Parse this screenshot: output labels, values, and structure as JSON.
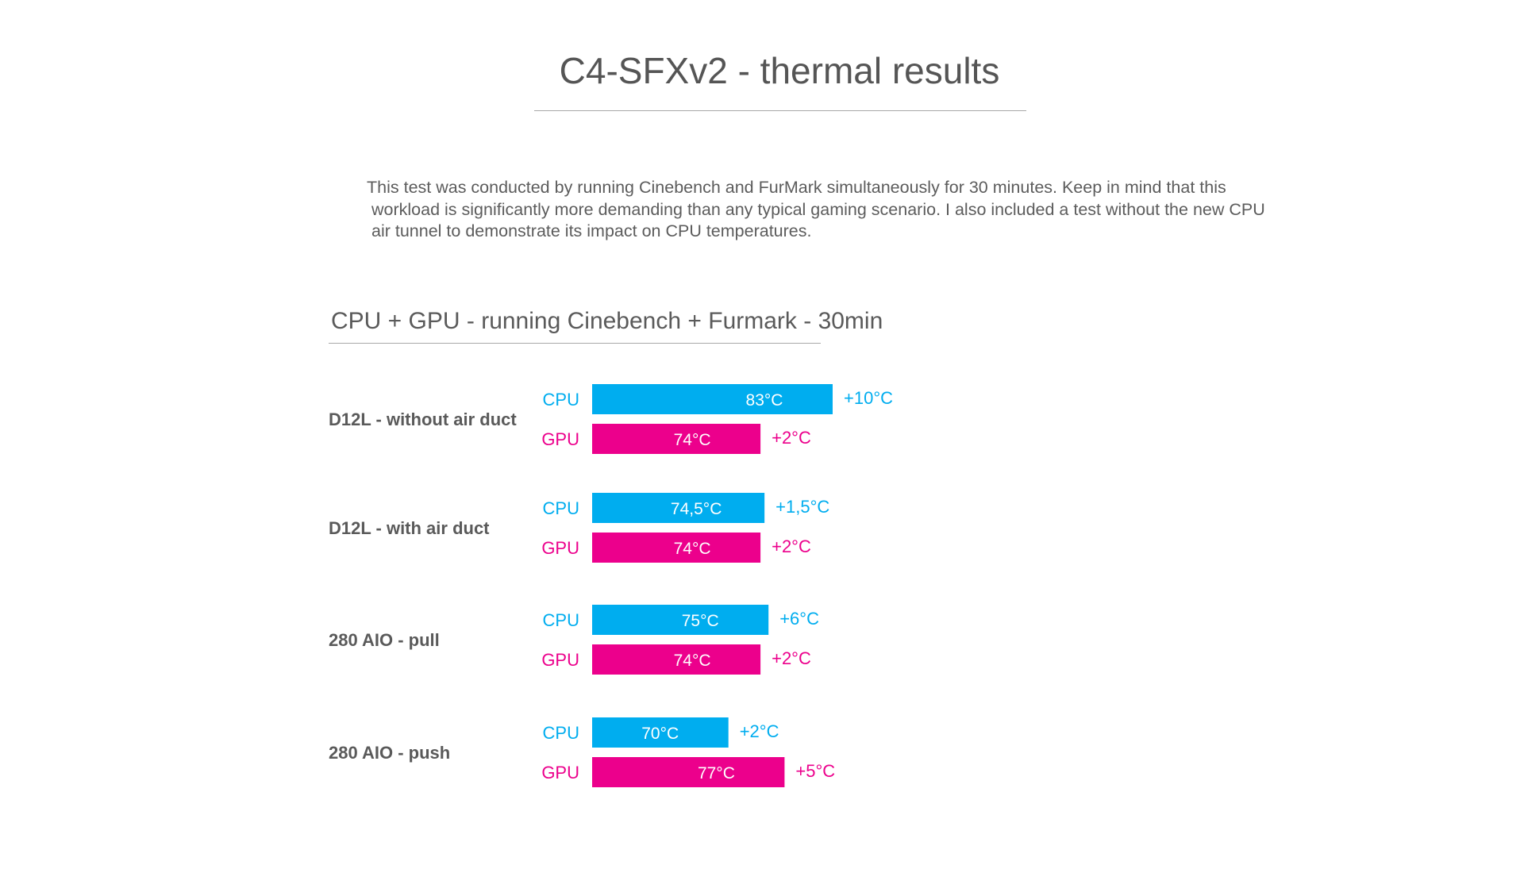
{
  "title": "C4-SFXv2 - thermal results",
  "description": [
    "This test was conducted by running Cinebench and FurMark simultaneously for 30 minutes. Keep in mind that this",
    "workload is significantly more demanding than any typical gaming scenario. I also included a test without the new CPU",
    "air tunnel to demonstrate its impact on CPU temperatures."
  ],
  "chart_data": {
    "type": "bar",
    "orientation": "horizontal",
    "title": "CPU + GPU - running Cinebench + Furmark - 30min",
    "unit": "°C",
    "colors": {
      "CPU": "#00adef",
      "GPU": "#ec008c"
    },
    "categories": [
      "D12L - without air duct",
      "D12L - with air duct",
      "280 AIO - pull",
      "280 AIO - push"
    ],
    "series": [
      {
        "name": "CPU",
        "values": [
          83,
          74.5,
          75,
          70
        ],
        "value_labels": [
          "83°C",
          "74,5°C",
          "75°C",
          "70°C"
        ],
        "delta_labels": [
          "+10°C",
          "+1,5°C",
          "+6°C",
          "+2°C"
        ]
      },
      {
        "name": "GPU",
        "values": [
          74,
          74,
          74,
          77
        ],
        "value_labels": [
          "74°C",
          "74°C",
          "74°C",
          "77°C"
        ],
        "delta_labels": [
          "+2°C",
          "+2°C",
          "+2°C",
          "+5°C"
        ]
      }
    ],
    "grid": false,
    "legend": "none"
  }
}
